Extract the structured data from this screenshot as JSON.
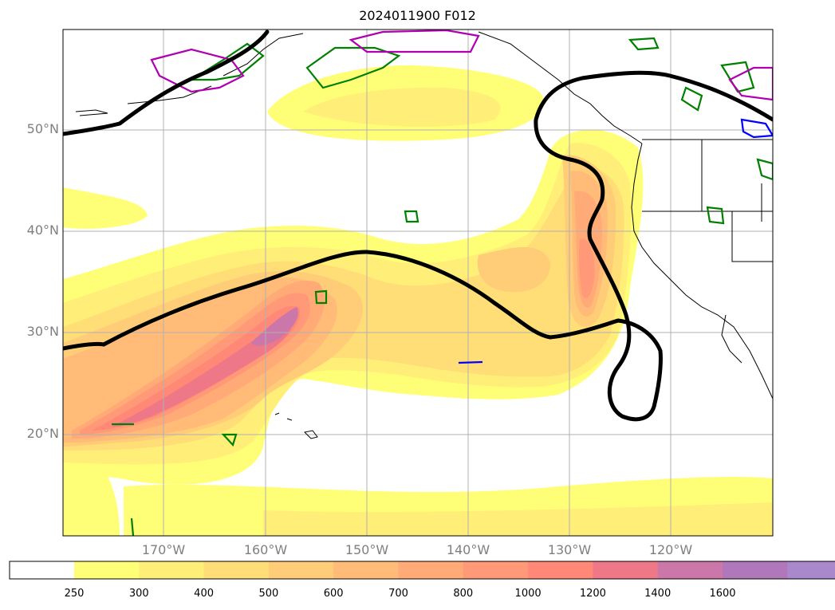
{
  "title": "2024011900 F012",
  "lat_labels": [
    "50°N",
    "40°N",
    "30°N",
    "20°N"
  ],
  "lon_labels": [
    "170°W",
    "160°W",
    "150°W",
    "140°W",
    "130°W",
    "120°W"
  ],
  "colorbar": {
    "ticks": [
      "250",
      "300",
      "400",
      "500",
      "600",
      "700",
      "800",
      "1000",
      "1200",
      "1400",
      "1600"
    ],
    "colors": [
      "#ffff77",
      "#ffee77",
      "#ffdd77",
      "#ffcc77",
      "#ffbb77",
      "#ffaa77",
      "#ff9977",
      "#ff8877",
      "#ee7788",
      "#cc77aa",
      "#b077bb",
      "#aa88cc"
    ]
  }
}
